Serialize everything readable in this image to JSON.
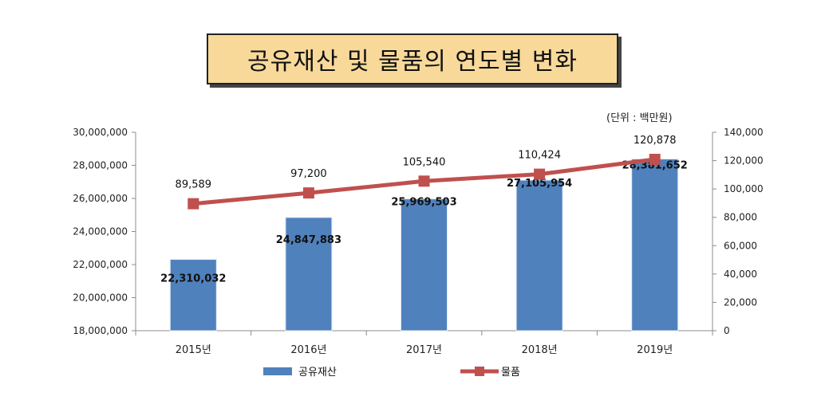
{
  "title": "공유재산 및 물품의 연도별 변화",
  "unit_label": "(단위 : 백만원)",
  "colors": {
    "bar": "#4f81bd",
    "line": "#c0504d",
    "title_bg": "#f8d99a"
  },
  "chart_data": {
    "type": "bar+line",
    "categories": [
      "2015년",
      "2016년",
      "2017년",
      "2018년",
      "2019년"
    ],
    "series": [
      {
        "name": "공유재산",
        "type": "bar",
        "axis": "left",
        "values": [
          22310032,
          24847883,
          25969503,
          27105954,
          28381652
        ],
        "labels": [
          "22,310,032",
          "24,847,883",
          "25,969,503",
          "27,105,954",
          "28,381,652"
        ]
      },
      {
        "name": "물품",
        "type": "line",
        "axis": "right",
        "values": [
          89589,
          97200,
          105540,
          110424,
          120878
        ],
        "labels": [
          "89,589",
          "97,200",
          "105,540",
          "110,424",
          "120,878"
        ]
      }
    ],
    "left_axis": {
      "ylim": [
        18000000,
        30000000
      ],
      "ticks": [
        18000000,
        20000000,
        22000000,
        24000000,
        26000000,
        28000000,
        30000000
      ],
      "tick_labels": [
        "18,000,000",
        "20,000,000",
        "22,000,000",
        "24,000,000",
        "26,000,000",
        "28,000,000",
        "30,000,000"
      ]
    },
    "right_axis": {
      "ylim": [
        0,
        140000
      ],
      "ticks": [
        0,
        20000,
        40000,
        60000,
        80000,
        100000,
        120000,
        140000
      ],
      "tick_labels": [
        "0",
        "20,000",
        "40,000",
        "60,000",
        "80,000",
        "100,000",
        "120,000",
        "140,000"
      ]
    },
    "legend": {
      "position": "bottom",
      "items": [
        "공유재산",
        "물품"
      ]
    },
    "grid": false
  }
}
